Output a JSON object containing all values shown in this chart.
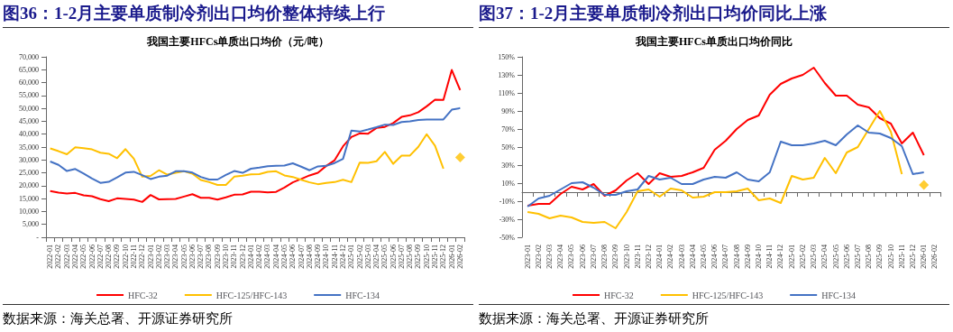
{
  "chart_data": [
    {
      "type": "line",
      "title": "图36：1-2月主要单质制冷剂出口均价整体持续上行",
      "subtitle": "我国主要HFCs单质出口均价（元/吨）",
      "annotations": [
        "数据来源：海关总署、开源证券研究所"
      ],
      "categories": [
        "2022-01",
        "2022-02",
        "2022-03",
        "2022-04",
        "2022-05",
        "2022-06",
        "2022-07",
        "2022-08",
        "2022-09",
        "2022-10",
        "2022-11",
        "2022-12",
        "2023-01",
        "2023-02",
        "2023-03",
        "2023-04",
        "2023-05",
        "2023-06",
        "2023-07",
        "2023-08",
        "2023-09",
        "2023-10",
        "2023-11",
        "2023-12",
        "2024-01",
        "2024-02",
        "2024-03",
        "2024-04",
        "2024-05",
        "2024-06",
        "2024-07",
        "2024-08",
        "2024-09",
        "2024-10",
        "2024-11",
        "2024-12",
        "2025-01",
        "2025-02",
        "2025-03",
        "2025-04",
        "2025-05",
        "2025-06",
        "2025-07",
        "2025-08",
        "2025-09",
        "2025-10",
        "2025-11",
        "2025-12",
        "2026-01",
        "2026-02"
      ],
      "series": [
        {
          "name": "HFC-32",
          "color": "#ff0000",
          "values": [
            17900,
            17300,
            17000,
            17200,
            16300,
            15900,
            14800,
            14000,
            15100,
            14900,
            14600,
            13700,
            16400,
            14700,
            14800,
            14900,
            15800,
            16700,
            15300,
            15300,
            14600,
            15500,
            16500,
            16600,
            17700,
            17700,
            17400,
            17600,
            19300,
            21300,
            22600,
            24000,
            25000,
            27700,
            29900,
            35300,
            38900,
            40300,
            40200,
            42400,
            42800,
            44300,
            46700,
            47300,
            48500,
            50800,
            53400,
            53300,
            64900,
            57100
          ]
        },
        {
          "name": "HFC-125/HFC-143",
          "color": "#ffc000",
          "values": [
            34500,
            33400,
            32200,
            34900,
            34600,
            34100,
            32800,
            32400,
            30700,
            34200,
            30500,
            23500,
            23800,
            26000,
            24300,
            25000,
            25600,
            24700,
            22200,
            21400,
            20300,
            20300,
            23500,
            23900,
            24400,
            24500,
            25400,
            25600,
            24000,
            23400,
            22300,
            21300,
            20600,
            21100,
            21400,
            22300,
            21400,
            29000,
            28900,
            29500,
            33100,
            28500,
            31700,
            31700,
            35100,
            40000,
            35500,
            26600,
            null,
            null
          ]
        },
        {
          "name": "HFC-134",
          "color": "#4472c4",
          "values": [
            29400,
            28100,
            25700,
            26500,
            24700,
            22800,
            21100,
            21500,
            23200,
            25100,
            25400,
            24100,
            22600,
            23500,
            23900,
            25600,
            25600,
            25100,
            23400,
            22400,
            22400,
            24200,
            25700,
            25000,
            26600,
            27000,
            27600,
            27700,
            27800,
            28700,
            27400,
            26000,
            27500,
            27700,
            28800,
            30400,
            41400,
            41000,
            41800,
            42700,
            43700,
            43600,
            44700,
            45000,
            45500,
            45700,
            45700,
            45700,
            49500,
            50100
          ]
        },
        {
          "type": "scatter",
          "marker": "diamond",
          "color": "#ffc000",
          "values": [
            null,
            null,
            null,
            null,
            null,
            null,
            null,
            null,
            null,
            null,
            null,
            null,
            null,
            null,
            null,
            null,
            null,
            null,
            null,
            null,
            null,
            null,
            null,
            null,
            null,
            null,
            null,
            null,
            null,
            null,
            null,
            null,
            null,
            null,
            null,
            null,
            null,
            null,
            null,
            null,
            null,
            null,
            null,
            null,
            null,
            null,
            null,
            null,
            null,
            31000
          ]
        }
      ],
      "ylim": [
        0,
        70000
      ],
      "yticks": [
        {
          "value": 0,
          "label": "-"
        },
        {
          "value": 5000,
          "label": "5,000"
        },
        {
          "value": 10000,
          "label": "10,000"
        },
        {
          "value": 15000,
          "label": "15,000"
        },
        {
          "value": 20000,
          "label": "20,000"
        },
        {
          "value": 25000,
          "label": "25,000"
        },
        {
          "value": 30000,
          "label": "30,000"
        },
        {
          "value": 35000,
          "label": "35,000"
        },
        {
          "value": 40000,
          "label": "40,000"
        },
        {
          "value": 45000,
          "label": "45,000"
        },
        {
          "value": 50000,
          "label": "50,000"
        },
        {
          "value": 55000,
          "label": "55,000"
        },
        {
          "value": 60000,
          "label": "60,000"
        },
        {
          "value": 65000,
          "label": "65,000"
        },
        {
          "value": 70000,
          "label": "70,000"
        }
      ],
      "grid": false,
      "legend": "bottom",
      "marker": "none"
    },
    {
      "type": "line",
      "title": "图37：1-2月主要单质制冷剂出口均价同比上涨",
      "subtitle": "我国主要HFCs单质出口均价同比",
      "annotations": [
        "数据来源：海关总署、开源证券研究所"
      ],
      "categories": [
        "2023-01",
        "2023-02",
        "2023-03",
        "2023-04",
        "2023-05",
        "2023-06",
        "2023-07",
        "2023-08",
        "2023-09",
        "2023-10",
        "2023-11",
        "2023-12",
        "2024-01",
        "2024-02",
        "2024-03",
        "2024-04",
        "2024-05",
        "2024-06",
        "2024-07",
        "2024-08",
        "2024-09",
        "2024-10",
        "2024-11",
        "2024-12",
        "2025-01",
        "2025-02",
        "2025-03",
        "2025-04",
        "2025-05",
        "2025-06",
        "2025-07",
        "2025-08",
        "2025-09",
        "2025-10",
        "2025-11",
        "2025-12",
        "2026-01",
        "2026-02"
      ],
      "series": [
        {
          "name": "HFC-32",
          "color": "#ff0000",
          "values": [
            -15,
            -13,
            -13,
            -2,
            6,
            3,
            9,
            -4,
            2,
            13,
            21,
            9,
            21,
            17,
            18,
            22,
            27,
            47,
            57,
            70,
            80,
            85,
            108,
            120,
            126,
            130,
            138,
            121,
            107,
            107,
            97,
            94,
            82,
            76,
            54,
            66,
            41,
            null
          ]
        },
        {
          "name": "HFC-125/HFC-143",
          "color": "#ffc000",
          "values": [
            -22,
            -24,
            -29,
            -26,
            -28,
            -33,
            -34,
            -33,
            -40,
            -22,
            1,
            3,
            -5,
            4,
            2,
            -6,
            -5,
            0,
            0,
            1,
            4,
            -9,
            -7,
            -12,
            18,
            14,
            16,
            38,
            21,
            44,
            50,
            70,
            90,
            67,
            20,
            null,
            null,
            null
          ]
        },
        {
          "name": "HFC-134",
          "color": "#4472c4",
          "values": [
            -16,
            -7,
            -4,
            3,
            10,
            11,
            5,
            -3,
            -3,
            1,
            3,
            18,
            14,
            16,
            9,
            9,
            14,
            17,
            16,
            22,
            14,
            12,
            22,
            56,
            52,
            52,
            54,
            57,
            52,
            64,
            74,
            66,
            65,
            60,
            51,
            20,
            22,
            null
          ]
        },
        {
          "type": "scatter",
          "marker": "diamond",
          "color": "#ffc000",
          "values": [
            null,
            null,
            null,
            null,
            null,
            null,
            null,
            null,
            null,
            null,
            null,
            null,
            null,
            null,
            null,
            null,
            null,
            null,
            null,
            null,
            null,
            null,
            null,
            null,
            null,
            null,
            null,
            null,
            null,
            null,
            null,
            null,
            null,
            null,
            null,
            null,
            8,
            null
          ]
        }
      ],
      "ylim": [
        -50,
        150
      ],
      "yticks": [
        {
          "value": -50,
          "label": "-50%"
        },
        {
          "value": -30,
          "label": "-30%"
        },
        {
          "value": -10,
          "label": "-10%"
        },
        {
          "value": 10,
          "label": "10%"
        },
        {
          "value": 30,
          "label": "30%"
        },
        {
          "value": 50,
          "label": "50%"
        },
        {
          "value": 70,
          "label": "70%"
        },
        {
          "value": 90,
          "label": "90%"
        },
        {
          "value": 110,
          "label": "110%"
        },
        {
          "value": 130,
          "label": "130%"
        },
        {
          "value": 150,
          "label": "150%"
        }
      ],
      "grid": false,
      "legend": "bottom",
      "marker": "none"
    }
  ]
}
